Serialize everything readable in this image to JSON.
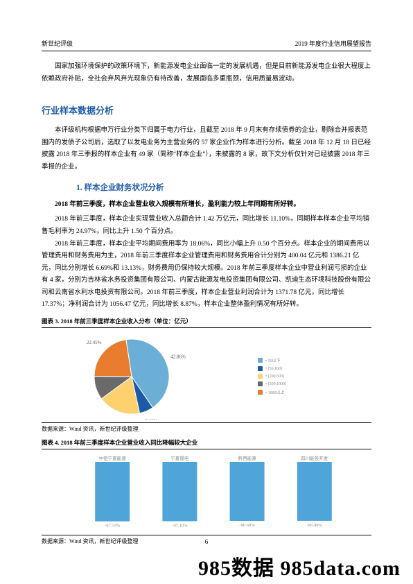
{
  "header": {
    "left": "新世纪评级",
    "right": "2019 年度行业信用展望报告"
  },
  "intro": "国家加强环境保护的政策环境下，新能源发电企业面临一定的发展机遇，但是目前新能源发电企业很大程度上依赖政府补贴，全社会弃风弃光现象仍有待改善，发展面临多重瓶颈，信用质量易波动。",
  "section": "行业样本数据分析",
  "para1": "本评级机构根据申万行业分类下归属于电力行业，且截至 2018 年 9 月末有存续债券的企业，剔除合并报表范围内的发债子公司后，选取了以发电业务为主营业务的 57 家企业作为样本进行分析。截至 2018 年 12 月 18 日已经披露 2018 年三季报的样本企业有 49 家（简称“样本企业”），未披露的 8 家，故下文分析仅针对已经披露 2018 年三季报的企业。",
  "subsection": "1. 样本企业财务状况分析",
  "boldline": "2018 年前三季度，样本企业营业收入规模有所增长，盈利能力较上年同期有所好转。",
  "para2": "2018 年前三季度，样本企业实现营业收入总额合计 1.42 万亿元，同比增长 11.10%，同期样本样本企业平均销售毛利率为 24.97%，同比上升 1.50 个百分点。",
  "para3": "2018 年前三季度，样本企业平均期间费用率为 18.06%，同比小幅上升 0.50 个百分点。样本企业的期间费用以管理费用和财务费用为主，2018 年前三季度样本企业管理费用和财务费用合计分别为 400.04 亿元和 1386.21 亿元，同比分别增长 6.69%和 13.13%，财务费用仍保持较大规模。2018 年前三季度样本企业中营业利润亏损的企业有 4 家，分别为吉林省水务投资集团有限公司、内蒙古能源发电投资集团有限公司、凯迪生态环境科技股份有限公司和云南省水利水电投资有限公司。2018 年前三季度，样本企业营业利润合计为 1371.78 亿元，同比增长 17.37%；净利润合计为 1056.47 亿元，同比增长 8.87%，样本企业整体盈利情况有所好转。",
  "chart3": {
    "caption": "图表 3.  2018 年前三季度样本企业收入分布（单位：亿元）",
    "type": "pie",
    "slices": [
      {
        "label": "• 50以下",
        "value": 42.86,
        "color": "#6baed6",
        "textVal": "42.86%"
      },
      {
        "label": "• [50,100]",
        "value": 6.12,
        "color": "#1d5ba8",
        "textVal": "6.12%"
      },
      {
        "label": "• (100,500]",
        "value": 18.37,
        "color": "#fdd26e",
        "textVal": "18.37%"
      },
      {
        "label": "• (500,1000]",
        "value": 10.2,
        "color": "#6a6a6a",
        "textVal": ""
      },
      {
        "label": "• 1000以上",
        "value": 22.45,
        "color": "#e97c2f",
        "textVal": "22.45%"
      }
    ],
    "source": "数据来源：Wind 资讯，新世纪评级整理"
  },
  "chart4": {
    "caption": "图表 4.  2018 年前三季度样本企业营业收入同比降幅较大企业",
    "type": "bar",
    "ylim": [
      -100,
      0
    ],
    "bar_color": "#4fa5d8",
    "bars": [
      {
        "label": "中铝宁夏能源",
        "value": -97.33,
        "text": "-97.33%"
      },
      {
        "label": "宁夏晟电",
        "value": -97.1,
        "text": "-97.10%"
      },
      {
        "label": "黔西能源",
        "value": -96.6,
        "text": "-96.60%"
      },
      {
        "label": "四川能投开发",
        "value": -96.49,
        "text": "-96.49%"
      }
    ],
    "source": "数据来源：Wind 资讯，新世纪评级整理"
  },
  "page_number": "6",
  "watermark": "985数据 985data.com"
}
